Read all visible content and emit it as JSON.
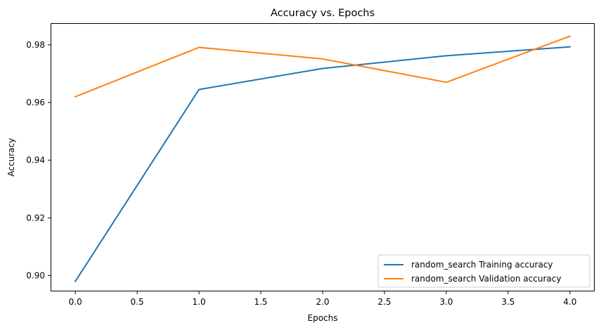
{
  "chart_data": {
    "type": "line",
    "title": "Accuracy vs. Epochs",
    "xlabel": "Epochs",
    "ylabel": "Accuracy",
    "xlim": [
      -0.2,
      4.2
    ],
    "ylim": [
      0.8945,
      0.9875
    ],
    "xticks": [
      0.0,
      0.5,
      1.0,
      1.5,
      2.0,
      2.5,
      3.0,
      3.5,
      4.0
    ],
    "xtick_labels": [
      "0.0",
      "0.5",
      "1.0",
      "1.5",
      "2.0",
      "2.5",
      "3.0",
      "3.5",
      "4.0"
    ],
    "yticks": [
      0.9,
      0.92,
      0.94,
      0.96,
      0.98
    ],
    "ytick_labels": [
      "0.90",
      "0.92",
      "0.94",
      "0.96",
      "0.98"
    ],
    "grid": false,
    "legend_position": "lower-right",
    "x": [
      0,
      1,
      2,
      3,
      4
    ],
    "series": [
      {
        "name": "random_search Training accuracy",
        "color": "#1f77b4",
        "values": [
          0.898,
          0.9645,
          0.9718,
          0.9762,
          0.9793
        ]
      },
      {
        "name": "random_search Validation accuracy",
        "color": "#ff7f0e",
        "values": [
          0.962,
          0.9791,
          0.9751,
          0.967,
          0.983
        ]
      }
    ]
  }
}
